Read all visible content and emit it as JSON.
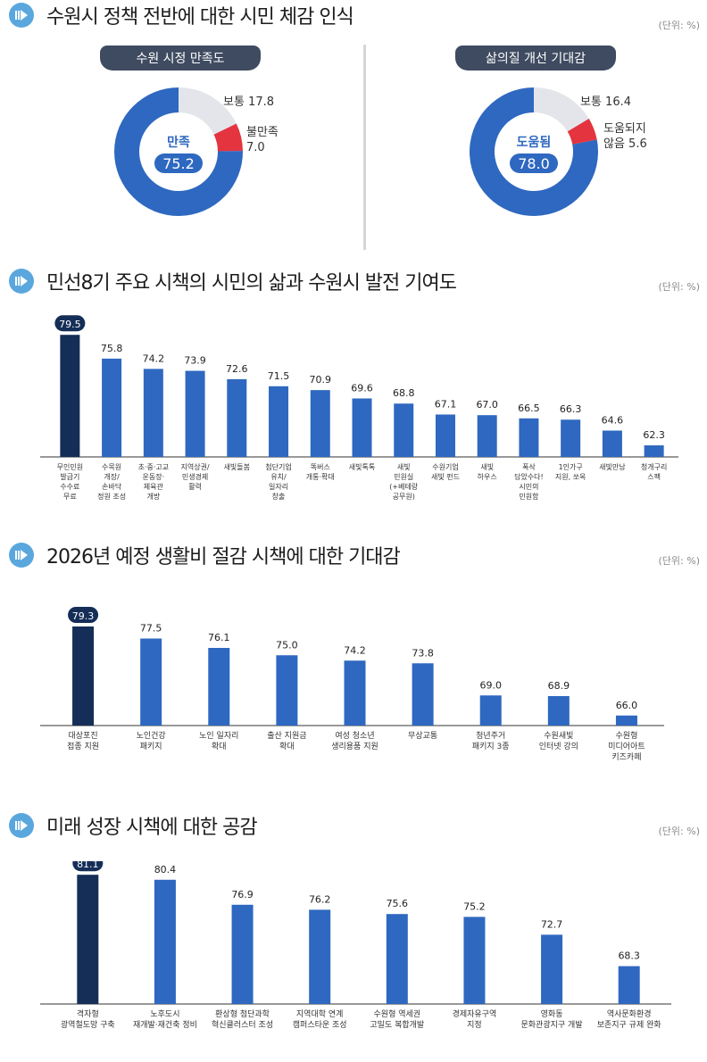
{
  "sections": [
    {
      "title": "수원시 정책 전반에 대한 시민 체감 인식",
      "unit": "(단위: %)"
    },
    {
      "title": "민선8기 주요 시책의 시민의 삶과 수원시 발전 기여도",
      "unit": "(단위: %)"
    },
    {
      "title": "2026년 예정 생활비 절감 시책에 대한 기대감",
      "unit": "(단위: %)"
    },
    {
      "title": "미래 성장 시책에 대한 공감",
      "unit": "(단위: %)"
    }
  ],
  "colors": {
    "primary": "#2e68c0",
    "highlight": "#152e57",
    "negative": "#e3343f",
    "neutral": "#e3e5ea",
    "icon": "#5aa7de"
  },
  "chart_data": [
    {
      "type": "pie",
      "title": "수원 시정 만족도",
      "center_label": "만족",
      "center_value": "75.2",
      "slices": [
        {
          "label": "만족",
          "value": 75.2,
          "color": "#2e68c0"
        },
        {
          "label": "보통",
          "value": 17.8,
          "color": "#e3e5ea"
        },
        {
          "label": "불만족",
          "value": 7.0,
          "color": "#e3343f"
        }
      ],
      "labels": [
        {
          "lines": [
            "보통 17.8"
          ]
        },
        {
          "lines": [
            "불만족",
            "7.0"
          ]
        }
      ]
    },
    {
      "type": "pie",
      "title": "삶의질 개선 기대감",
      "center_label": "도움됨",
      "center_value": "78.0",
      "slices": [
        {
          "label": "도움됨",
          "value": 78.0,
          "color": "#2e68c0"
        },
        {
          "label": "보통",
          "value": 16.4,
          "color": "#e3e5ea"
        },
        {
          "label": "도움되지 않음",
          "value": 5.6,
          "color": "#e3343f"
        }
      ],
      "labels": [
        {
          "lines": [
            "보통 16.4"
          ]
        },
        {
          "lines": [
            "도움되지",
            "않음 5.6"
          ]
        }
      ]
    },
    {
      "type": "bar",
      "categories": [
        "무인민원\n발급기\n수수료\n무료",
        "수목원\n개장/\n손바닥\n정원 조성",
        "초·중·고교\n운동장·\n체육관\n개방",
        "지역상권/\n민생경제\n활력",
        "새빛돌봄",
        "첨단기업\n유치/\n일자리\n창출",
        "똑버스\n개통·확대",
        "새빛톡톡",
        "새빛\n민원실\n(+베테랑\n공무원)",
        "수원기업\n새빛 펀드",
        "새빛\n하우스",
        "폭삭\n담았수다!\n시민의\n민원함",
        "1인가구\n지원, 쏘옥",
        "새빛만남",
        "청개구리\n스팩"
      ],
      "values": [
        79.5,
        75.8,
        74.2,
        73.9,
        72.6,
        71.5,
        70.9,
        69.6,
        68.8,
        67.1,
        67.0,
        66.5,
        66.3,
        64.6,
        62.3
      ],
      "value_labels": [
        "79.5",
        "75.8",
        "74.2",
        "73.9",
        "72.6",
        "71.5",
        "70.9",
        "69.6",
        "68.8",
        "67.1",
        "67.0",
        "66.5",
        "66.3",
        "64.6",
        "62.3"
      ],
      "highlight_index": 0
    },
    {
      "type": "bar",
      "categories": [
        "대상포진\n접종 지원",
        "노인건강\n패키지",
        "노인 일자리\n확대",
        "출산 지원금\n확대",
        "여성 청소년\n생리용품 지원",
        "무상교통",
        "청년주거\n패키지 3종",
        "수원새빛\n인터넷 강의",
        "수원형\n미디어아트\n키즈카페"
      ],
      "values": [
        79.3,
        77.5,
        76.1,
        75.0,
        74.2,
        73.8,
        69.0,
        68.9,
        66.0
      ],
      "value_labels": [
        "79.3",
        "77.5",
        "76.1",
        "75.0",
        "74.2",
        "73.8",
        "69.0",
        "68.9",
        "66.0"
      ],
      "highlight_index": 0
    },
    {
      "type": "bar",
      "categories": [
        "격자형\n광역철도망 구축",
        "노후도시\n재개발·재건축 정비",
        "환상형 첨단과학\n혁신클러스터 조성",
        "지역대학 연계\n캠퍼스타운 조성",
        "수원형 역세권\n고밀도 복합개발",
        "경제자유구역\n지정",
        "영화동\n문화관광지구 개발",
        "역사문화환경\n보존지구 규제 완화"
      ],
      "values": [
        81.1,
        80.4,
        76.9,
        76.2,
        75.6,
        75.2,
        72.7,
        68.3
      ],
      "value_labels": [
        "81.1",
        "80.4",
        "76.9",
        "76.2",
        "75.6",
        "75.2",
        "72.7",
        "68.3"
      ],
      "highlight_index": 0
    }
  ]
}
